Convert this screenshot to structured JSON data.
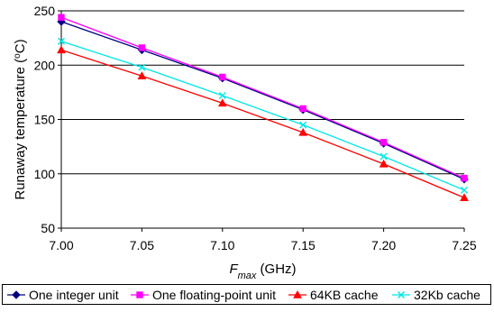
{
  "chart_data": {
    "type": "line",
    "title": "",
    "xlabel": {
      "main": "F",
      "sub": "max",
      "unit": " (GHz)"
    },
    "ylabel": {
      "pre": "Runaway temperature (",
      "sup": "o",
      "post": "C)"
    },
    "x": [
      7.0,
      7.05,
      7.1,
      7.15,
      7.2,
      7.25
    ],
    "x_tick_labels": [
      "7.00",
      "7.05",
      "7.10",
      "7.15",
      "7.20",
      "7.25"
    ],
    "xlim": [
      7.0,
      7.25
    ],
    "ylim": [
      50,
      250
    ],
    "y_ticks": [
      50,
      100,
      150,
      200,
      250
    ],
    "y_tick_labels": [
      "50",
      "100",
      "150",
      "200",
      "250"
    ],
    "grid": "horizontal",
    "legend_position": "bottom",
    "series": [
      {
        "name": "One integer unit",
        "color": "#000080",
        "marker": "diamond",
        "values": [
          240,
          214,
          188,
          159,
          128,
          95
        ]
      },
      {
        "name": "One floating-point unit",
        "color": "#ff00ff",
        "marker": "square",
        "values": [
          244,
          216,
          189,
          160,
          129,
          96
        ]
      },
      {
        "name": "64KB cache",
        "color": "#ff0000",
        "marker": "triangle",
        "values": [
          214,
          190,
          165,
          138,
          109,
          78
        ]
      },
      {
        "name": "32Kb cache",
        "color": "#00e5e5",
        "marker": "x",
        "values": [
          222,
          198,
          172,
          145,
          116,
          85
        ]
      }
    ]
  }
}
